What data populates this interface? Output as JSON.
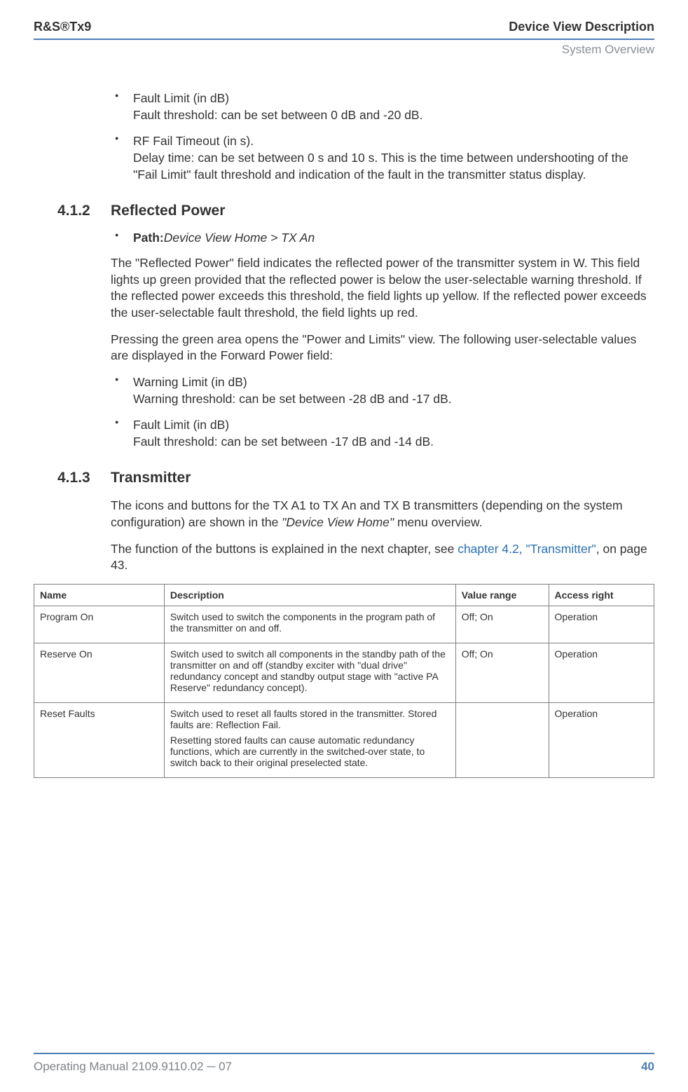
{
  "header": {
    "product": "R&S®Tx9",
    "title": "Device View Description",
    "subtitle": "System Overview"
  },
  "intro_bullets": [
    {
      "title": "Fault Limit (in dB)",
      "body": "Fault threshold: can be set between 0 dB and ‑20 dB."
    },
    {
      "title": "RF Fail Timeout (in s).",
      "body": "Delay time: can be set between 0 s and 10 s. This is the time between undershoot­ing of the \"Fail Limit\" fault threshold and indication of the fault in the transmitter sta­tus display."
    }
  ],
  "sec412": {
    "num": "4.1.2",
    "title": "Reflected Power",
    "path_label": "Path:",
    "path_value": "Device View Home > TX An",
    "p1": "The \"Reflected Power\" field indicates the reflected power of the transmitter system in W. This field lights up green provided that the reflected power is below the user‑select­able warning threshold. If the reflected power exceeds this threshold, the field lights up yellow. If the reflected power exceeds the user‑selectable fault threshold, the field lights up red.",
    "p2": "Pressing the green area opens the \"Power and Limits\" view. The following user‑select­able values are displayed in the Forward Power field:",
    "bullets": [
      {
        "title": "Warning Limit (in dB)",
        "body": "Warning threshold: can be set between ‑28 dB and ‑17 dB."
      },
      {
        "title": "Fault Limit (in dB)",
        "body": "Fault threshold: can be set between ‑17 dB and ‑14 dB."
      }
    ]
  },
  "sec413": {
    "num": "4.1.3",
    "title": "Transmitter",
    "p1_a": "The icons and buttons for the TX A1 to TX An and TX B transmitters (depending on the system configuration) are shown in the ",
    "p1_i": "\"Device View Home\"",
    "p1_b": " menu overview.",
    "p2_a": "The function of the buttons is explained in the next chapter, see ",
    "p2_link": "chapter 4.2, \"Transmit­ter\"",
    "p2_b": ", on page 43."
  },
  "table": {
    "headers": [
      "Name",
      "Description",
      "Value range",
      "Access right"
    ],
    "rows": [
      {
        "name": "Program On",
        "desc": [
          "Switch used to switch the components in the program path of the transmitter on and off."
        ],
        "range": "Off; On",
        "access": "Operation"
      },
      {
        "name": "Reserve On",
        "desc": [
          "Switch used to switch all components in the standby path of the transmitter on and off (standby exciter with \"dual drive\" redundancy concept and standby output stage with \"active PA Reserve\" redundancy concept)."
        ],
        "range": "Off; On",
        "access": "Operation"
      },
      {
        "name": "Reset Faults",
        "desc": [
          "Switch used to reset all faults stored in the transmitter. Stored faults are: Reflection Fail.",
          "Resetting stored faults can cause automatic redundancy functions, which are currently in the switched-over state, to switch back to their original preselected state."
        ],
        "range": "",
        "access": "Operation"
      }
    ],
    "col_widths": [
      "21%",
      "47%",
      "15%",
      "17%"
    ]
  },
  "footer": {
    "left": "Operating Manual 2109.9110.02 ─ 07",
    "page": "40"
  },
  "colors": {
    "rule": "#4a7fb5",
    "link": "#2a6fb0",
    "muted": "#8a8f94"
  }
}
